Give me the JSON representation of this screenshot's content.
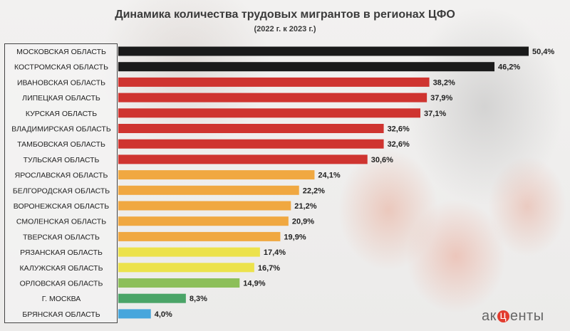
{
  "chart_data": {
    "type": "bar",
    "orientation": "horizontal",
    "title": "Динамика количества трудовых мигрантов в регионах ЦФО",
    "subtitle": "(2022 г. к 2023 г.)",
    "categories": [
      "МОСКОВСКАЯ ОБЛАСТЬ",
      "КОСТРОМСКАЯ ОБЛАСТЬ",
      "ИВАНОВСКАЯ ОБЛАСТЬ",
      "ЛИПЕЦКАЯ ОБЛАСТЬ",
      "КУРСКАЯ ОБЛАСТЬ",
      "ВЛАДИМИРСКАЯ ОБЛАСТЬ",
      "ТАМБОВСКАЯ ОБЛАСТЬ",
      "ТУЛЬСКАЯ ОБЛАСТЬ",
      "ЯРОСЛАВСКАЯ ОБЛАСТЬ",
      "БЕЛГОРОДСКАЯ ОБЛАСТЬ",
      "ВОРОНЕЖСКАЯ ОБЛАСТЬ",
      "СМОЛЕНСКАЯ ОБЛАСТЬ",
      "ТВЕРСКАЯ ОБЛАСТЬ",
      "РЯЗАНСКАЯ ОБЛАСТЬ",
      "КАЛУЖСКАЯ ОБЛАСТЬ",
      "ОРЛОВСКАЯ ОБЛАСТЬ",
      "Г. МОСКВА",
      "БРЯНСКАЯ ОБЛАСТЬ"
    ],
    "values": [
      50.4,
      46.2,
      38.2,
      37.9,
      37.1,
      32.6,
      32.6,
      30.6,
      24.1,
      22.2,
      21.2,
      20.9,
      19.9,
      17.4,
      16.7,
      14.9,
      8.3,
      4.0
    ],
    "value_labels": [
      "50,4%",
      "46,2%",
      "38,2%",
      "37,9%",
      "37,1%",
      "32,6%",
      "32,6%",
      "30,6%",
      "24,1%",
      "22,2%",
      "21,2%",
      "20,9%",
      "19,9%",
      "17,4%",
      "16,7%",
      "14,9%",
      "8,3%",
      "4,0%"
    ],
    "colors": [
      "#1a1a1a",
      "#1a1a1a",
      "#cf3430",
      "#cf3430",
      "#cf3430",
      "#cf3430",
      "#cf3430",
      "#cf3430",
      "#f0a841",
      "#f0a841",
      "#f0a841",
      "#f0a841",
      "#f0a841",
      "#ece24c",
      "#ece24c",
      "#8dbf5a",
      "#4aa467",
      "#47a6dc"
    ],
    "xlim": [
      0,
      50.4
    ],
    "unit": "%"
  },
  "logo": {
    "text_left": "ак",
    "text_mid": "ц",
    "text_right": "енты"
  }
}
